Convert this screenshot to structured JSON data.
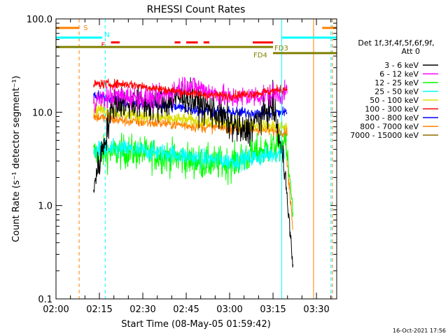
{
  "chart_data": {
    "type": "line",
    "title": "RHESSI Count Rates",
    "xlabel": "Start Time (08-May-05 01:59:42)",
    "ylabel": "Count Rate (s⁻¹ detector segment⁻¹)",
    "y_scale": "log",
    "ylim": [
      0.1,
      100.0
    ],
    "xlim": [
      "02:00",
      "03:37"
    ],
    "x_ticks": [
      "02:00",
      "02:15",
      "02:30",
      "02:45",
      "03:00",
      "03:15",
      "03:30"
    ],
    "y_ticks": [
      "0.1",
      "1.0",
      "10.0",
      "100.0"
    ],
    "footer_date": "16-Oct-2021 17:56",
    "legend": {
      "placement": "right",
      "header": [
        "Det 1f,3f,4f,5f,6f,9f,",
        "Att 0"
      ]
    },
    "series": [
      {
        "name": "3 - 6 keV",
        "color": "#000000",
        "x": [
          "02:13",
          "02:20",
          "02:35",
          "02:45",
          "02:55",
          "03:05",
          "03:15",
          "03:19"
        ],
        "values": [
          1.6,
          13.0,
          12.0,
          15.0,
          10.0,
          6.0,
          12.0,
          2.5
        ],
        "noise": 0.09
      },
      {
        "name": "6 - 12 keV",
        "color": "#ff00ff",
        "x": [
          "02:13",
          "02:20",
          "02:35",
          "02:45",
          "02:50",
          "03:00",
          "03:10",
          "03:20"
        ],
        "values": [
          13.0,
          15.0,
          14.0,
          20.0,
          18.0,
          14.0,
          15.0,
          16.0
        ],
        "noise": 0.06
      },
      {
        "name": "12 - 25 keV",
        "color": "#00ff00",
        "x": [
          "02:13",
          "02:25",
          "02:40",
          "02:50",
          "03:00",
          "03:10",
          "03:20"
        ],
        "values": [
          3.6,
          3.8,
          3.3,
          2.9,
          2.8,
          3.8,
          4.8
        ],
        "noise": 0.09
      },
      {
        "name": "25 - 50 keV",
        "color": "#00ffff",
        "x": [
          "02:13",
          "02:25",
          "02:40",
          "02:50",
          "03:00",
          "03:10",
          "03:19"
        ],
        "values": [
          3.9,
          4.0,
          3.6,
          3.2,
          3.0,
          3.3,
          3.8
        ],
        "noise": 0.05
      },
      {
        "name": "50 - 100 keV",
        "color": "#dddd00",
        "x": [
          "02:13",
          "02:25",
          "02:40",
          "02:50",
          "03:00",
          "03:10",
          "03:20"
        ],
        "values": [
          11.0,
          9.5,
          8.5,
          8.0,
          7.5,
          7.2,
          7.0
        ],
        "noise": 0.035
      },
      {
        "name": "100 - 300 keV",
        "color": "#ff0000",
        "x": [
          "02:13",
          "02:25",
          "02:40",
          "02:50",
          "03:00",
          "03:10",
          "03:20"
        ],
        "values": [
          20.0,
          20.0,
          17.0,
          15.5,
          15.0,
          16.0,
          18.0
        ],
        "noise": 0.025
      },
      {
        "name": "300 - 800 keV",
        "color": "#0000ff",
        "x": [
          "02:13",
          "02:25",
          "02:40",
          "02:50",
          "03:00",
          "03:10",
          "03:20"
        ],
        "values": [
          15.0,
          13.0,
          11.5,
          10.5,
          10.0,
          9.8,
          10.0
        ],
        "noise": 0.03
      },
      {
        "name": "800 - 7000 keV",
        "color": "#ff8000",
        "x": [
          "02:13",
          "02:25",
          "02:40",
          "02:50",
          "03:00",
          "03:10",
          "03:20"
        ],
        "values": [
          9.0,
          8.0,
          7.5,
          7.0,
          6.8,
          6.5,
          6.2
        ],
        "noise": 0.03
      },
      {
        "name": "7000 - 15000 keV",
        "color": "#8b6d00",
        "x": [],
        "values": [],
        "noise": 0
      }
    ],
    "flag_bars": [
      {
        "label": "S",
        "color": "#ff8000",
        "value": 80.0,
        "segments": [
          [
            "02:00",
            "02:08"
          ],
          [
            "03:32",
            "03:37"
          ]
        ]
      },
      {
        "label": "N",
        "color": "#00ffff",
        "value": 63.0,
        "segments": [
          [
            "02:00",
            "02:16"
          ],
          [
            "03:18",
            "03:37"
          ]
        ]
      },
      {
        "label": "F",
        "color": "#ff0000",
        "value": 56.0,
        "segments": [
          [
            "02:19",
            "02:22"
          ],
          [
            "02:41",
            "02:43"
          ],
          [
            "02:45",
            "02:49"
          ],
          [
            "02:51",
            "02:53"
          ],
          [
            "03:08",
            "03:15"
          ]
        ]
      },
      {
        "label": "FD3",
        "color": "#808000",
        "value": 50.0,
        "segments": [
          [
            "02:00",
            "03:15"
          ]
        ]
      },
      {
        "label": "FD4",
        "color": "#808000",
        "value": 43.0,
        "segments": [
          [
            "03:15",
            "03:37"
          ]
        ]
      }
    ],
    "vertical_markers": [
      {
        "x": "02:00",
        "color": "#00ffff",
        "style": "solid"
      },
      {
        "x": "02:08",
        "color": "#ff8000",
        "style": "dashed"
      },
      {
        "x": "02:17",
        "color": "#00ffff",
        "style": "dashed"
      },
      {
        "x": "03:18",
        "color": "#00ffff",
        "style": "solid"
      },
      {
        "x": "03:29",
        "color": "#ff8000",
        "style": "solid"
      },
      {
        "x": "03:35",
        "color": "#00ffff",
        "style": "dashed"
      },
      {
        "x": "03:35",
        "color": "#ff8000",
        "style": "dashed"
      }
    ]
  }
}
